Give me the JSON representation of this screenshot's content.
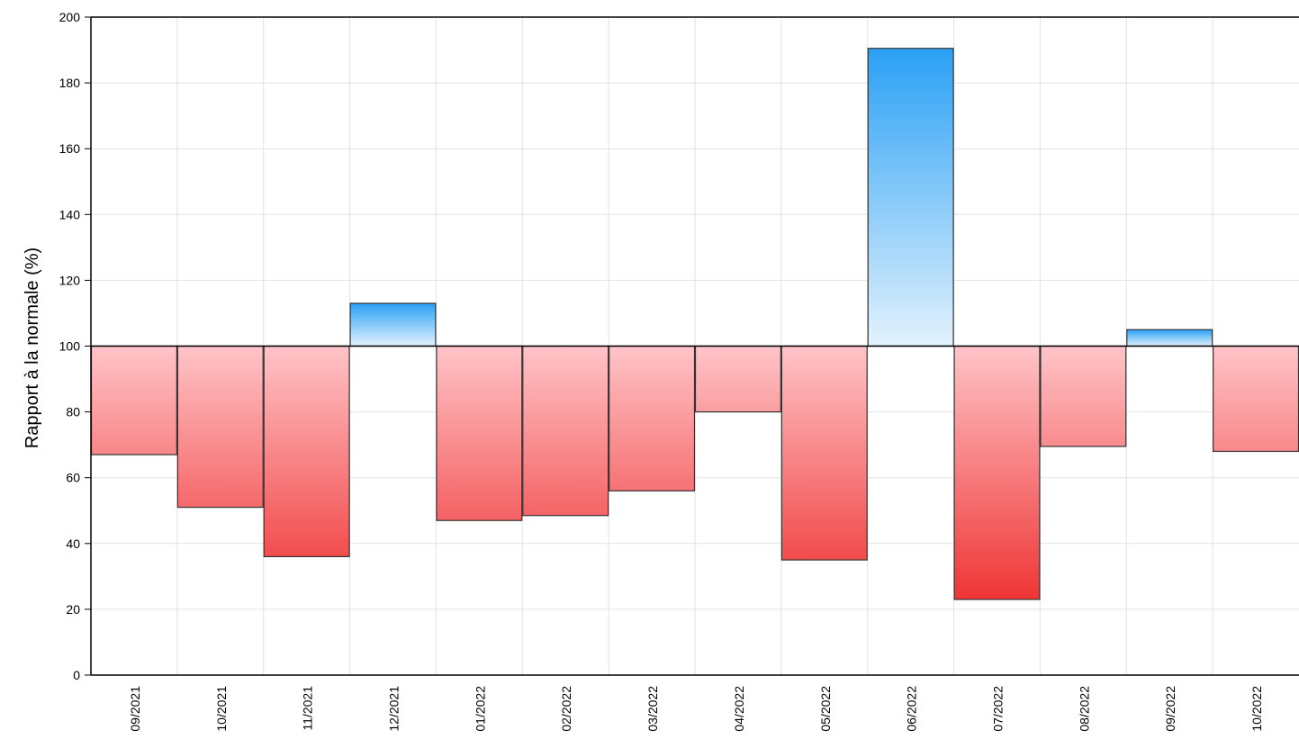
{
  "chart_data": {
    "type": "bar",
    "title": "",
    "xlabel": "",
    "ylabel": "Rapport à la normale (%)",
    "baseline": 100,
    "ylim": [
      0,
      200
    ],
    "yticks": [
      "0",
      "20",
      "40",
      "60",
      "80",
      "100",
      "120",
      "140",
      "160",
      "180",
      "200"
    ],
    "grid": true,
    "categories": [
      "09/2021",
      "10/2021",
      "11/2021",
      "12/2021",
      "01/2022",
      "02/2022",
      "03/2022",
      "04/2022",
      "05/2022",
      "06/2022",
      "07/2022",
      "08/2022",
      "09/2022",
      "10/2022"
    ],
    "values": [
      67,
      51,
      36,
      113,
      47,
      48.5,
      56,
      80,
      35,
      190.5,
      23,
      69.5,
      105,
      68
    ],
    "colors": {
      "above_top": "#2aa0f5",
      "above_bottom": "#e3f2fd",
      "below_top": "#ffc4c8",
      "below_bottom": "#ef2f2f"
    }
  }
}
